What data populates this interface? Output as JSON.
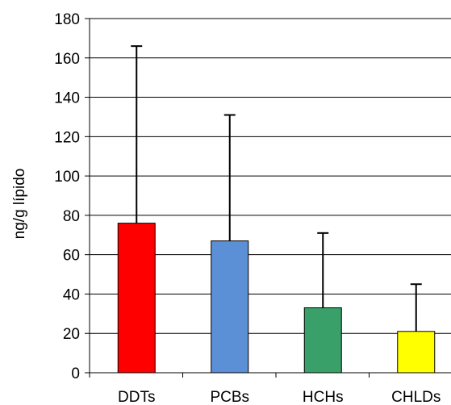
{
  "chart_data": {
    "type": "bar",
    "ylabel": "ng/g lípido",
    "categories": [
      "DDTs",
      "PCBs",
      "HCHs",
      "CHLDs"
    ],
    "values": [
      76,
      67,
      33,
      21
    ],
    "error_upper": [
      166,
      131,
      71,
      45
    ],
    "colors": [
      "#ff0000",
      "#5b8fd6",
      "#3aa06a",
      "#ffff00"
    ],
    "ylim": [
      0,
      180
    ],
    "yticks": [
      0,
      20,
      40,
      60,
      80,
      100,
      120,
      140,
      160,
      180
    ],
    "grid": true
  }
}
